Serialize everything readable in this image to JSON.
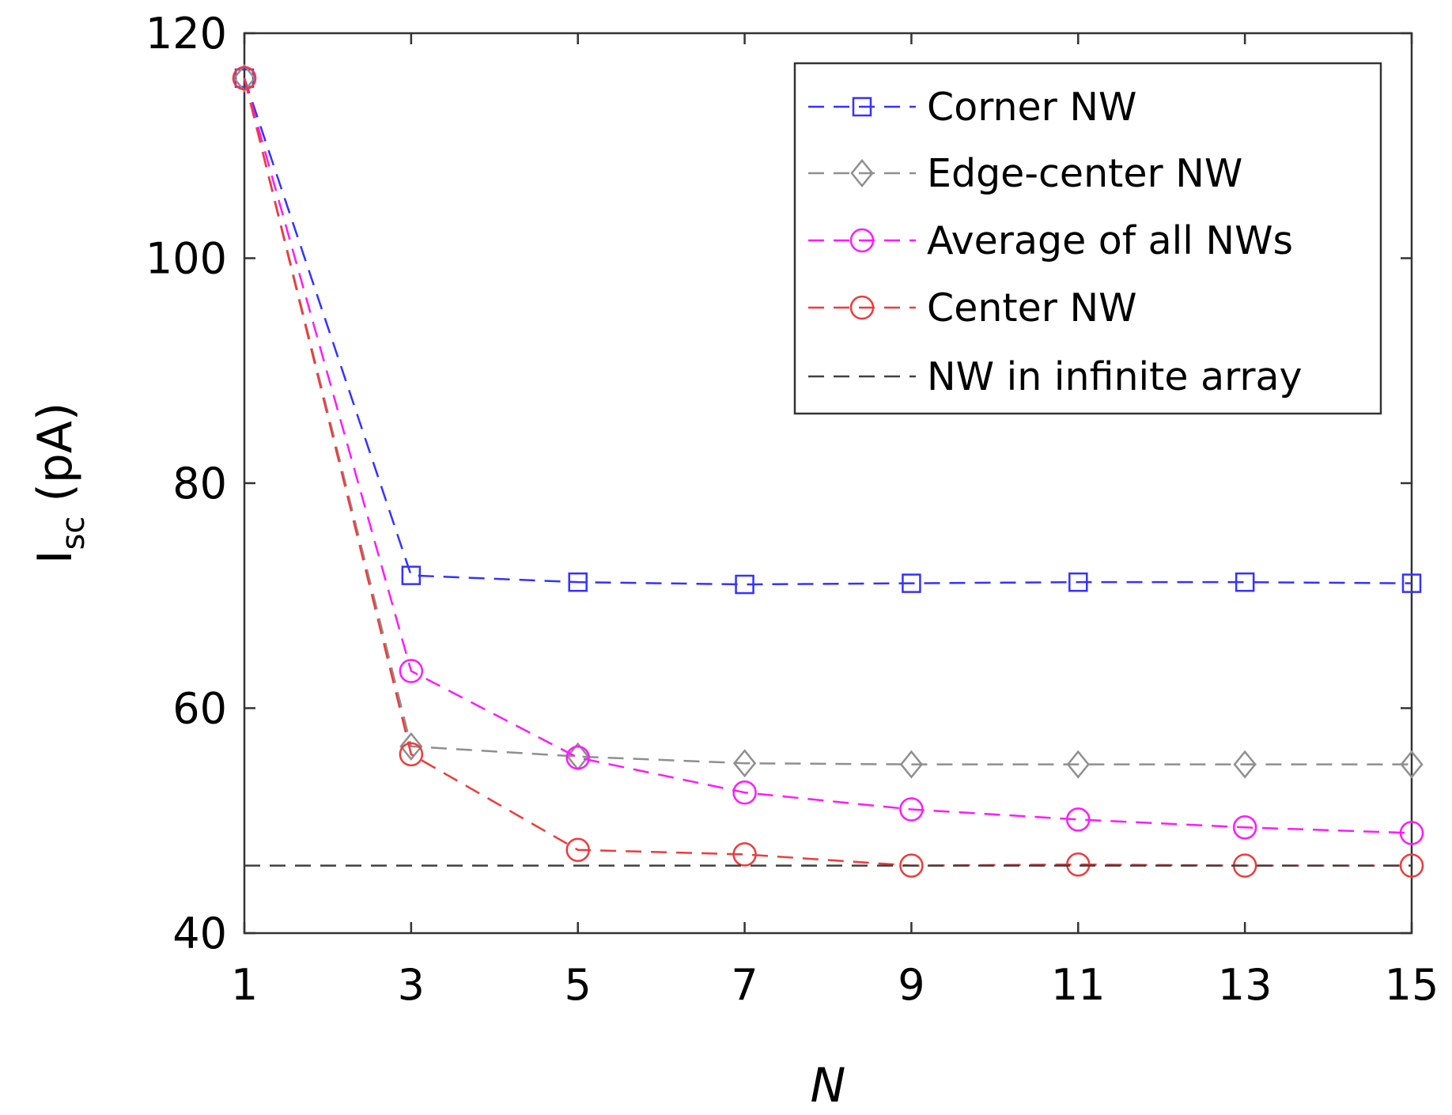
{
  "chart_data": {
    "type": "line",
    "title": "",
    "xlabel": "N",
    "ylabel": {
      "main": "I",
      "subscript": "sc",
      "unit": "(pA)"
    },
    "x": [
      1,
      3,
      5,
      7,
      9,
      11,
      13,
      15
    ],
    "xlim": [
      1,
      15
    ],
    "ylim": [
      40,
      120
    ],
    "xticks": [
      "1",
      "3",
      "5",
      "7",
      "9",
      "11",
      "13",
      "15"
    ],
    "yticks": [
      "40",
      "60",
      "80",
      "100",
      "120"
    ],
    "grid": false,
    "legend_position": "top-right",
    "series": [
      {
        "name": "Corner NW",
        "marker": "square",
        "color": "#3333ff",
        "line_style": "dashed",
        "values": [
          116,
          71.8,
          71.2,
          71.0,
          71.1,
          71.2,
          71.2,
          71.1
        ]
      },
      {
        "name": "Edge-center NW",
        "marker": "diamond",
        "color": "#8f8f8f",
        "line_style": "dashed",
        "values": [
          116,
          56.6,
          55.7,
          55.1,
          55.0,
          55.0,
          55.0,
          55.0
        ]
      },
      {
        "name": "Average of all NWs",
        "marker": "circle",
        "color": "#ff19ff",
        "line_style": "dashed",
        "values": [
          116,
          63.3,
          55.6,
          52.5,
          51.0,
          50.1,
          49.4,
          48.9
        ]
      },
      {
        "name": "Center NW",
        "marker": "circle",
        "color": "#f03a3a",
        "line_style": "dashed",
        "values": [
          116,
          55.9,
          47.4,
          47.0,
          46.0,
          46.1,
          46.0,
          46.0
        ]
      },
      {
        "name": "NW in infinite array",
        "marker": "none",
        "color": "#404040",
        "line_style": "dashed",
        "values": [
          46,
          46,
          46,
          46,
          46,
          46,
          46,
          46
        ]
      }
    ]
  }
}
